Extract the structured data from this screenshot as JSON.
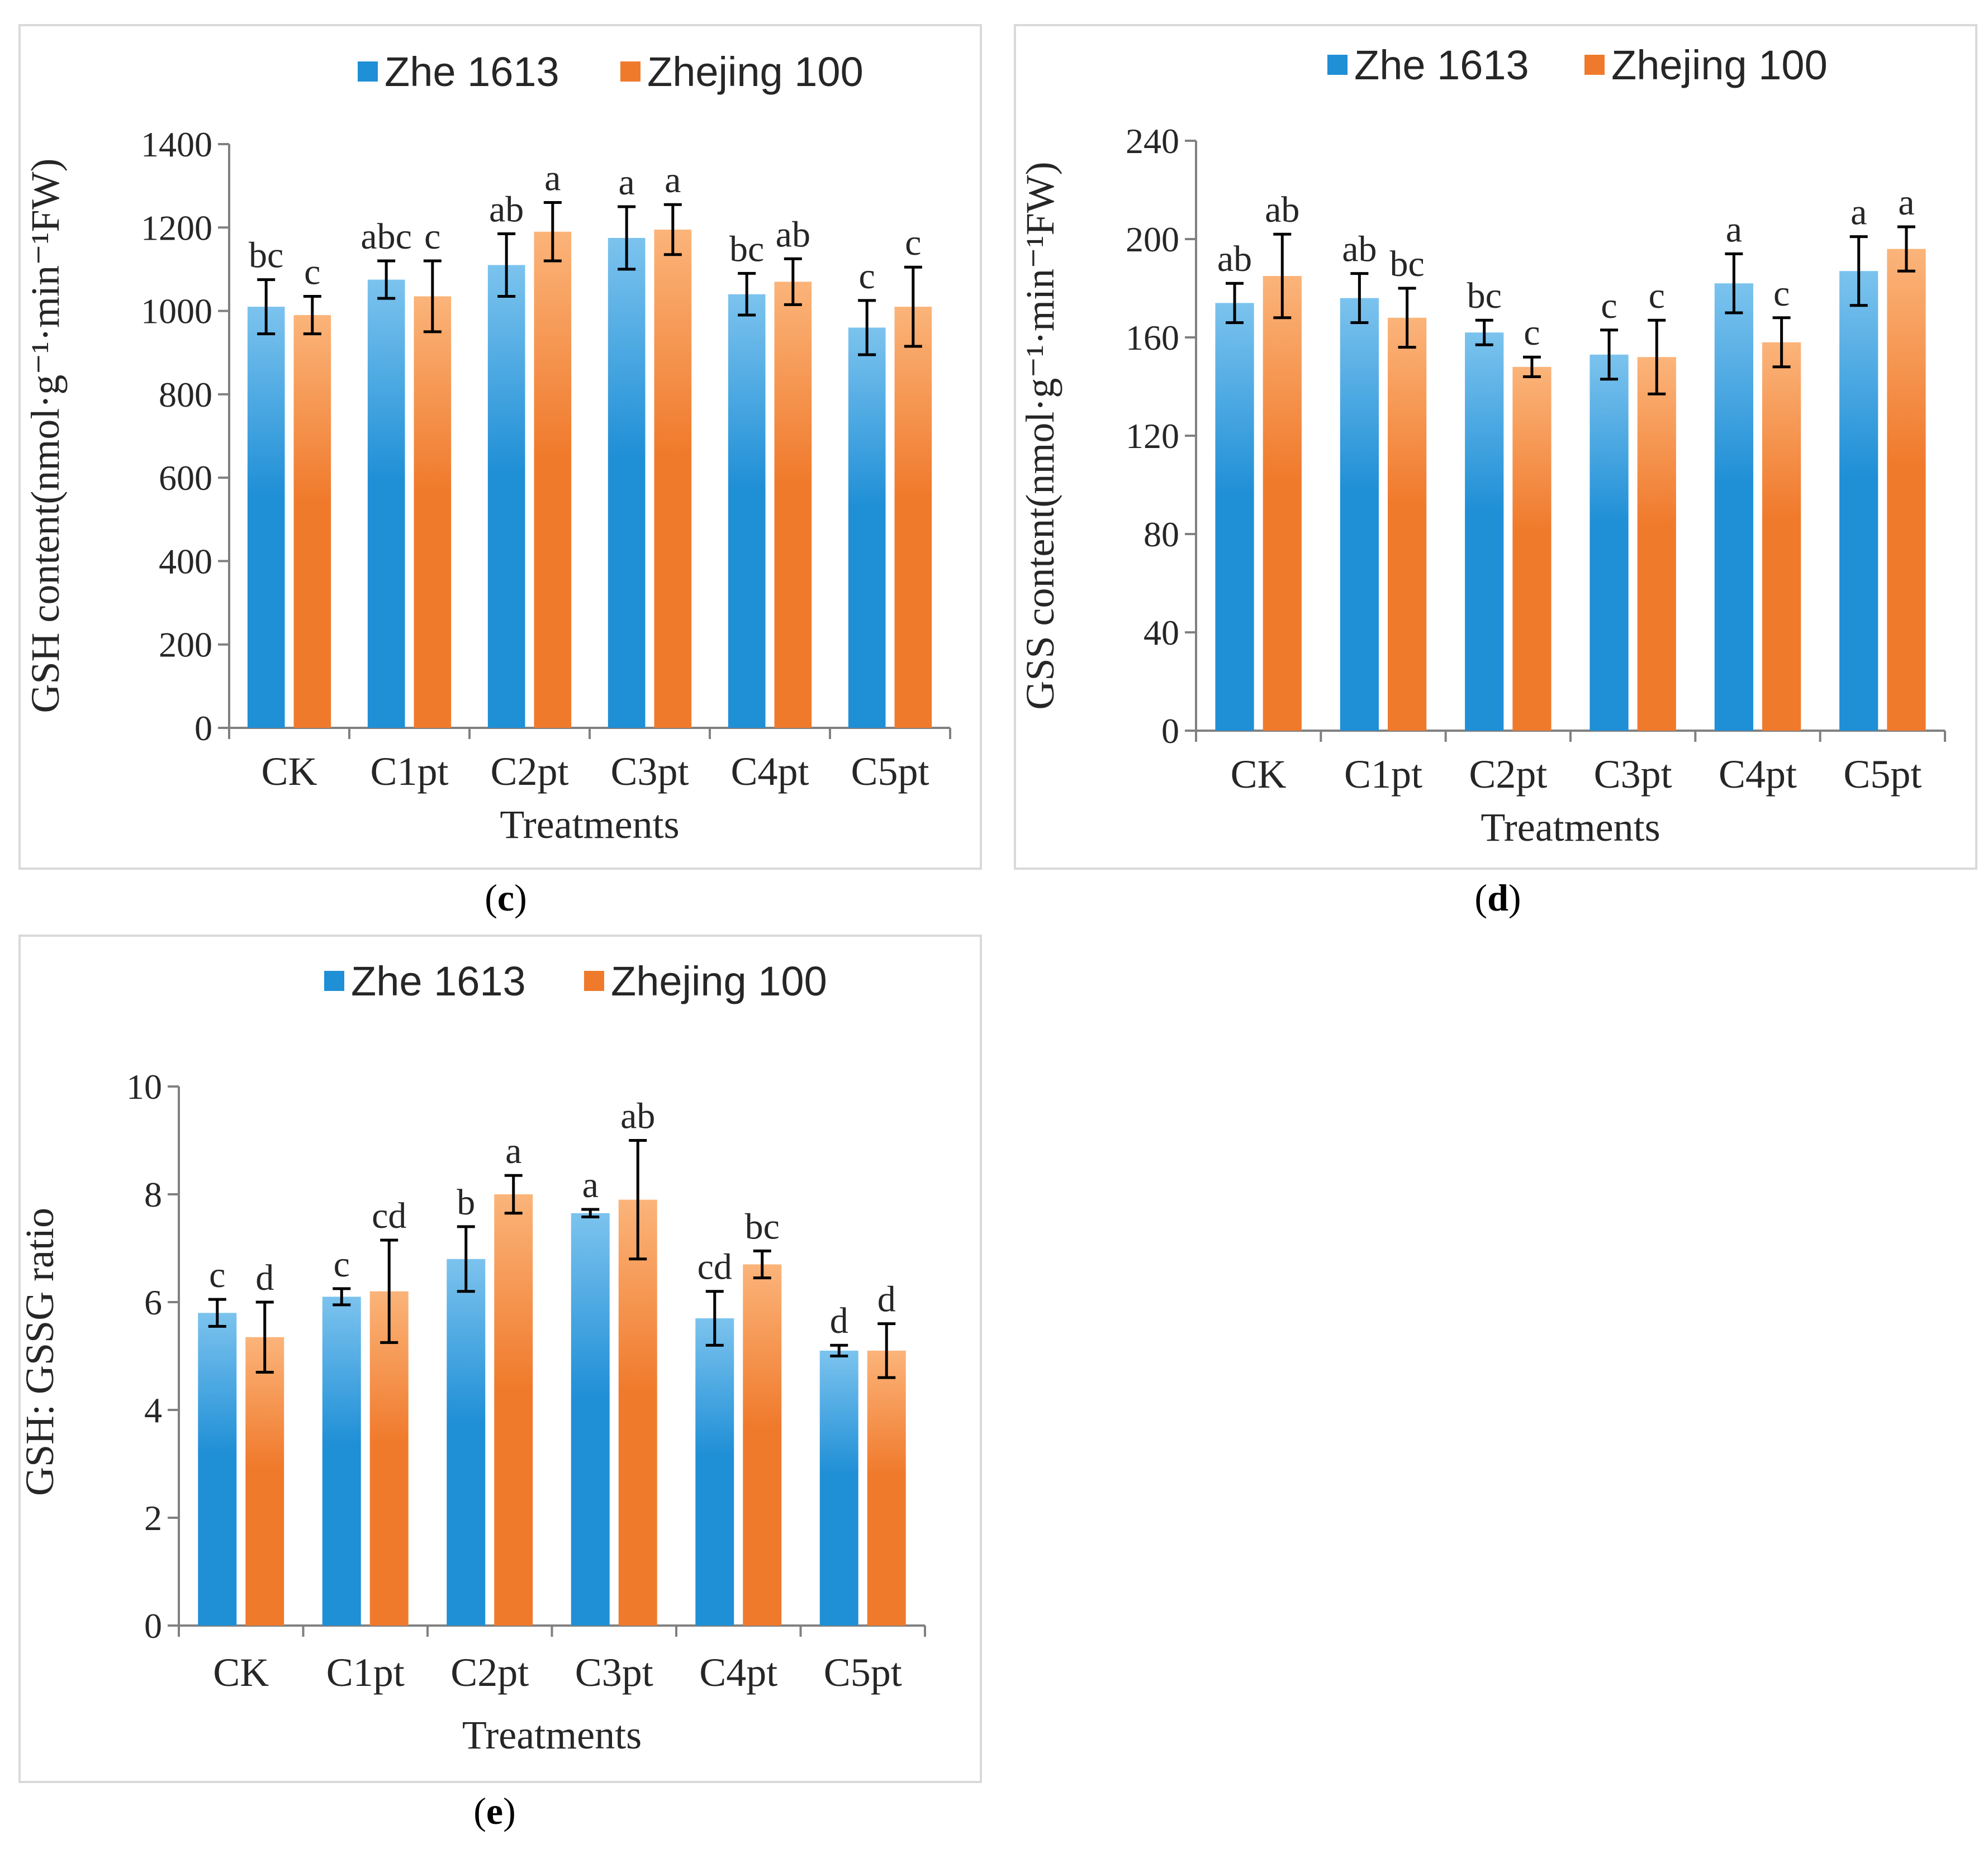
{
  "chart_data": [
    {
      "type": "bar",
      "panel": "c",
      "caption_letter": "c",
      "ylabel": "GSH content(nmol·g⁻¹·min⁻¹FW)",
      "xlabel": "Treatments",
      "ylim": [
        0,
        1400
      ],
      "yticks": [
        0,
        200,
        400,
        600,
        800,
        1000,
        1200,
        1400
      ],
      "categories": [
        "CK",
        "C1pt",
        "C2pt",
        "C3pt",
        "C4pt",
        "C5pt"
      ],
      "series": [
        {
          "name": "Zhe 1613",
          "values": [
            1010,
            1075,
            1110,
            1175,
            1040,
            960
          ],
          "errors": [
            65,
            45,
            75,
            75,
            50,
            65
          ],
          "letters": [
            "bc",
            "abc",
            "ab",
            "a",
            "bc",
            "c"
          ]
        },
        {
          "name": "Zhejing 100",
          "values": [
            990,
            1035,
            1190,
            1195,
            1070,
            1010
          ],
          "errors": [
            45,
            85,
            70,
            60,
            55,
            95
          ],
          "letters": [
            "c",
            "c",
            "a",
            "a",
            "ab",
            "c"
          ]
        }
      ]
    },
    {
      "type": "bar",
      "panel": "d",
      "caption_letter": "d",
      "ylabel": "GSS content(nmol·g⁻¹·min⁻¹FW)",
      "xlabel": "Treatments",
      "ylim": [
        0,
        240
      ],
      "yticks": [
        0,
        40,
        80,
        120,
        160,
        200,
        240
      ],
      "categories": [
        "CK",
        "C1pt",
        "C2pt",
        "C3pt",
        "C4pt",
        "C5pt"
      ],
      "series": [
        {
          "name": "Zhe 1613",
          "values": [
            174,
            176,
            162,
            153,
            182,
            187
          ],
          "errors": [
            8,
            10,
            5,
            10,
            12,
            14
          ],
          "letters": [
            "ab",
            "ab",
            "bc",
            "c",
            "a",
            "a"
          ]
        },
        {
          "name": "Zhejing 100",
          "values": [
            185,
            168,
            148,
            152,
            158,
            196
          ],
          "errors": [
            17,
            12,
            4,
            15,
            10,
            9
          ],
          "letters": [
            "ab",
            "bc",
            "c",
            "c",
            "c",
            "a"
          ]
        }
      ]
    },
    {
      "type": "bar",
      "panel": "e",
      "caption_letter": "e",
      "ylabel": "GSH: GSSG ratio",
      "xlabel": "Treatments",
      "ylim": [
        0,
        10
      ],
      "yticks": [
        0,
        2,
        4,
        6,
        8,
        10
      ],
      "categories": [
        "CK",
        "C1pt",
        "C2pt",
        "C3pt",
        "C4pt",
        "C5pt"
      ],
      "series": [
        {
          "name": "Zhe 1613",
          "values": [
            5.8,
            6.1,
            6.8,
            7.65,
            5.7,
            5.1
          ],
          "errors": [
            0.25,
            0.15,
            0.6,
            0.07,
            0.5,
            0.1
          ],
          "letters": [
            "c",
            "c",
            "b",
            "a",
            "cd",
            "d"
          ]
        },
        {
          "name": "Zhejing 100",
          "values": [
            5.35,
            6.2,
            8.0,
            7.9,
            6.7,
            5.1
          ],
          "errors": [
            0.65,
            0.95,
            0.35,
            1.1,
            0.25,
            0.5
          ],
          "letters": [
            "d",
            "cd",
            "a",
            "ab",
            "bc",
            "d"
          ]
        }
      ]
    }
  ],
  "colors": {
    "series": [
      "#1f8fd6",
      "#f07a2c"
    ],
    "series_light": [
      "#7cc3ee",
      "#fbb47a"
    ],
    "axis": "#808080",
    "frame": "#d9d9d9",
    "error_bar": "#000000"
  }
}
